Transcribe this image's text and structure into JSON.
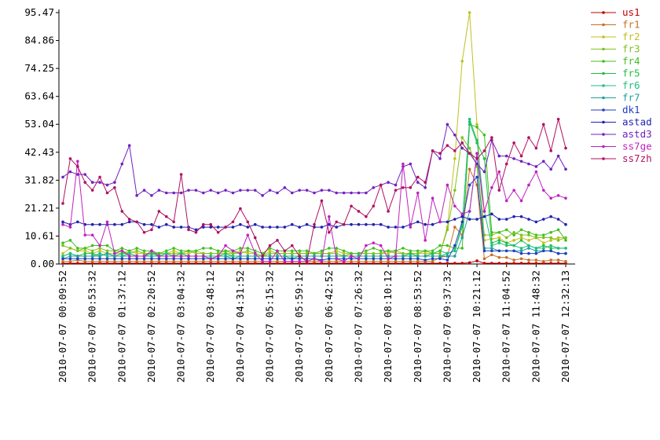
{
  "chart_data": {
    "type": "line",
    "categories": [
      "2010-07-07 00:09:52",
      null,
      null,
      null,
      "2010-07-07 00:53:32",
      null,
      null,
      null,
      "2010-07-07 01:37:12",
      null,
      null,
      null,
      "2010-07-07 02:20:52",
      null,
      null,
      null,
      "2010-07-07 03:04:32",
      null,
      null,
      null,
      "2010-07-07 03:48:12",
      null,
      null,
      null,
      "2010-07-07 04:31:52",
      null,
      null,
      null,
      "2010-07-07 05:15:32",
      null,
      null,
      null,
      "2010-07-07 05:59:12",
      null,
      null,
      null,
      "2010-07-07 06:42:52",
      null,
      null,
      null,
      "2010-07-07 07:26:32",
      null,
      null,
      null,
      "2010-07-07 08:10:12",
      null,
      null,
      null,
      "2010-07-07 08:53:52",
      null,
      null,
      null,
      "2010-07-07 09:37:32",
      null,
      null,
      null,
      "2010-07-07 10:21:12",
      null,
      null,
      null,
      "2010-07-07 11:04:52",
      null,
      null,
      null,
      "2010-07-07 11:48:32",
      null,
      null,
      null,
      "2010-07-07 12:32:13"
    ],
    "ylim": [
      0,
      95.47
    ],
    "yticks": [
      {
        "value": 0,
        "label": "0.00"
      },
      10.61,
      21.21,
      31.82,
      42.43,
      53.04,
      63.64,
      74.25,
      84.86,
      95.47
    ],
    "series": [
      {
        "name": "us1",
        "color": "#c00000",
        "values": [
          0.3,
          0.3,
          0.3,
          0.3,
          0.3,
          0.3,
          0.3,
          0.3,
          0.3,
          0.3,
          0.3,
          0.3,
          0.3,
          0.3,
          0.3,
          0.3,
          0.3,
          0.3,
          0.3,
          0.3,
          0.3,
          0.3,
          0.3,
          0.3,
          0.3,
          0.3,
          0.3,
          0.3,
          0.3,
          0.3,
          0.3,
          0.3,
          0.3,
          0.3,
          0.3,
          0.3,
          0.3,
          0.3,
          0.3,
          0.3,
          0.3,
          0.3,
          0.3,
          0.3,
          0.3,
          0.3,
          0.3,
          0.3,
          0.3,
          0.3,
          0.3,
          0.3,
          0.3,
          0.3,
          0.3,
          0.5,
          1.2,
          0.3,
          0.3,
          0.3,
          0.3,
          0.3,
          0.3,
          0.3,
          0.3,
          0.3,
          0.3,
          0.3,
          0.3
        ]
      },
      {
        "name": "fr1",
        "color": "#c87020",
        "values": [
          1,
          1,
          1.5,
          1,
          1,
          1,
          1,
          1,
          1,
          1,
          1,
          1,
          1,
          1,
          1,
          1,
          1,
          1,
          1,
          1,
          1,
          1,
          1,
          1,
          1,
          1,
          1,
          1,
          1,
          1,
          1,
          1,
          1,
          1,
          1,
          1,
          1,
          1,
          1,
          1,
          1,
          1,
          1,
          1,
          1,
          1,
          1,
          1,
          1,
          1,
          1,
          2.5,
          3,
          14,
          11,
          36,
          30,
          2,
          3.5,
          2.5,
          2.5,
          1.5,
          2,
          1.5,
          1.5,
          1,
          1.5,
          1.5,
          1
        ]
      },
      {
        "name": "fr2",
        "color": "#c0c020",
        "values": [
          4,
          6,
          5,
          5,
          4,
          5,
          4,
          4,
          4,
          5,
          4,
          4,
          4,
          4,
          4,
          5,
          4,
          4,
          5,
          4,
          4,
          4,
          4,
          4,
          5,
          4,
          4,
          3,
          5,
          4,
          4,
          4,
          4,
          4,
          4,
          4,
          4,
          5,
          4,
          4,
          4,
          4,
          4,
          4,
          4,
          5,
          4,
          4,
          4,
          4,
          4,
          4,
          14,
          40,
          77,
          95.47,
          53,
          9,
          9.5,
          10,
          8,
          9,
          10,
          9,
          10,
          8,
          9,
          10,
          10
        ]
      },
      {
        "name": "fr3",
        "color": "#80c020",
        "values": [
          7,
          6,
          5,
          6,
          5,
          6,
          5,
          5,
          5,
          4,
          5,
          4,
          4,
          4,
          4,
          4,
          4,
          5,
          4,
          4,
          4,
          4,
          5,
          4,
          4,
          5,
          4,
          3,
          4,
          4,
          4,
          4,
          4,
          4,
          4,
          4,
          4,
          4,
          3,
          4,
          4,
          4,
          4,
          4,
          5,
          4,
          4,
          4,
          4,
          5,
          4,
          4,
          13,
          28,
          48,
          44,
          37,
          11,
          11,
          12,
          10,
          12,
          11,
          11,
          10,
          10,
          10,
          9,
          10
        ]
      },
      {
        "name": "fr4",
        "color": "#40c020",
        "values": [
          8,
          9,
          6,
          6,
          7,
          7,
          7,
          5,
          6,
          5,
          6,
          5,
          5,
          4,
          5,
          6,
          5,
          5,
          5,
          6,
          6,
          5,
          5,
          5,
          6,
          6,
          5,
          4,
          6,
          5,
          5,
          5,
          5,
          5,
          4,
          5,
          6,
          6,
          5,
          4,
          4,
          5,
          6,
          5,
          5,
          5,
          6,
          5,
          5,
          5,
          5,
          7,
          7,
          6,
          6,
          53,
          52,
          49,
          12,
          12,
          13,
          11,
          13,
          12,
          11,
          11,
          12,
          13,
          9
        ]
      },
      {
        "name": "fr5",
        "color": "#20c040",
        "values": [
          3,
          4,
          3,
          4,
          4,
          3,
          4,
          3,
          4,
          4,
          3,
          3,
          4,
          3,
          4,
          3,
          4,
          3,
          3,
          3,
          3,
          3,
          4,
          3,
          3,
          3,
          3,
          3,
          3,
          3,
          3,
          3,
          3,
          3,
          3,
          3,
          3,
          3,
          3,
          3,
          3,
          3,
          3,
          3,
          3,
          3,
          3,
          4,
          3,
          3,
          4,
          5,
          4,
          5,
          15,
          54,
          46,
          40,
          8,
          9,
          8,
          7,
          9,
          7,
          6,
          7,
          6,
          6,
          6
        ]
      },
      {
        "name": "fr6",
        "color": "#20c080",
        "values": [
          3,
          4,
          3,
          3,
          3,
          4,
          3,
          3,
          3,
          4,
          3,
          3,
          3,
          3,
          4,
          3,
          3,
          3,
          3,
          3,
          3,
          3,
          3,
          3,
          3,
          3,
          3,
          3,
          3,
          3,
          3,
          3,
          3,
          3,
          3,
          3,
          3,
          3,
          3,
          3,
          3,
          3,
          3,
          3,
          3,
          3,
          3,
          3,
          3,
          3,
          3,
          3,
          4,
          5,
          14,
          55,
          47,
          20,
          7,
          8,
          7,
          7,
          6,
          7,
          6,
          6,
          7,
          6,
          6
        ]
      },
      {
        "name": "fr7",
        "color": "#20a0a0",
        "values": [
          2,
          3,
          3,
          3,
          3,
          3,
          4,
          3,
          3,
          3,
          3,
          3,
          3,
          3,
          3,
          3,
          3,
          3,
          3,
          3,
          2,
          3,
          3,
          2,
          3,
          3,
          3,
          3,
          3,
          3,
          3,
          2,
          3,
          3,
          3,
          3,
          3,
          3,
          3,
          3,
          3,
          3,
          3,
          3,
          3,
          3,
          3,
          3,
          3,
          3,
          3,
          3,
          3,
          3,
          10,
          20,
          42,
          6,
          6,
          5,
          5,
          5,
          5,
          6,
          5,
          5,
          5,
          4,
          4
        ]
      },
      {
        "name": "dk1",
        "color": "#2040c0",
        "values": [
          2,
          2,
          2,
          2,
          2,
          2,
          2,
          2,
          2,
          2,
          2,
          2,
          2,
          2,
          2,
          2,
          2,
          2,
          2,
          2,
          2,
          2,
          2,
          2,
          2,
          2,
          2,
          2,
          2,
          2,
          2,
          2,
          2,
          2,
          2,
          1.5,
          2,
          2,
          2,
          2,
          2,
          2,
          2,
          2,
          2,
          2,
          2,
          2,
          2,
          1.5,
          2,
          2,
          1.5,
          7,
          16,
          30,
          33,
          5,
          5,
          5,
          5,
          5,
          4,
          4,
          4,
          5,
          5,
          4,
          4
        ]
      },
      {
        "name": "astad",
        "color": "#2020b0",
        "values": [
          16,
          15,
          16,
          15,
          15,
          15,
          15,
          15,
          15,
          16,
          16,
          15,
          15,
          14,
          15,
          14,
          14,
          14,
          13,
          14,
          14,
          14,
          14,
          14,
          15,
          14,
          15,
          14,
          14,
          14,
          14,
          15,
          14,
          15,
          14,
          14,
          15,
          14,
          15,
          15,
          15,
          15,
          15,
          15,
          14,
          14,
          14,
          15,
          16,
          15,
          15,
          16,
          16,
          17,
          18,
          17,
          17,
          18,
          19,
          17,
          17,
          18,
          18,
          17,
          16,
          17,
          18,
          17,
          15
        ]
      },
      {
        "name": "astd3",
        "color": "#7020c0",
        "values": [
          33,
          35,
          34,
          34,
          31,
          31,
          30,
          31,
          38,
          45,
          26,
          28,
          26,
          28,
          27,
          27,
          27,
          28,
          28,
          27,
          28,
          27,
          28,
          27,
          28,
          28,
          28,
          26,
          28,
          27,
          29,
          27,
          28,
          28,
          27,
          28,
          28,
          27,
          27,
          27,
          27,
          27,
          29,
          30,
          31,
          30,
          37,
          38,
          31,
          29,
          43,
          40,
          53,
          49,
          44,
          42,
          38,
          35,
          47,
          41,
          41,
          40,
          39,
          38,
          37,
          39,
          36,
          41,
          36
        ]
      },
      {
        "name": "ss7ge",
        "color": "#c020c0",
        "values": [
          15,
          14,
          39,
          11,
          11,
          7,
          16,
          4,
          5,
          3,
          3,
          3,
          5,
          3,
          3,
          3,
          3,
          3,
          3,
          3,
          2,
          3,
          7,
          5,
          4,
          11,
          4,
          1,
          1,
          5,
          1,
          1,
          1,
          1,
          2,
          1,
          18,
          2,
          1,
          3,
          2,
          7,
          8,
          7,
          2,
          3,
          38,
          14,
          27,
          9,
          25,
          16,
          30,
          22,
          19,
          20,
          42,
          20,
          29,
          35,
          24,
          28,
          24,
          30,
          35,
          28,
          25,
          26,
          25
        ]
      },
      {
        "name": "ss7zh",
        "color": "#b01060",
        "values": [
          23,
          40,
          37,
          31,
          28,
          33,
          27,
          29,
          20,
          17,
          16,
          12,
          13,
          20,
          18,
          16,
          34,
          13,
          12,
          15,
          15,
          12,
          14,
          16,
          21,
          16,
          10,
          3,
          7,
          9,
          5,
          7,
          3,
          1,
          15,
          24,
          12,
          16,
          15,
          22,
          20,
          18,
          22,
          30,
          20,
          28,
          29,
          29,
          33,
          31,
          43,
          42,
          45,
          43,
          46,
          42,
          40,
          43,
          48,
          28,
          38,
          46,
          41,
          48,
          44,
          53,
          43,
          55,
          44
        ]
      }
    ]
  }
}
